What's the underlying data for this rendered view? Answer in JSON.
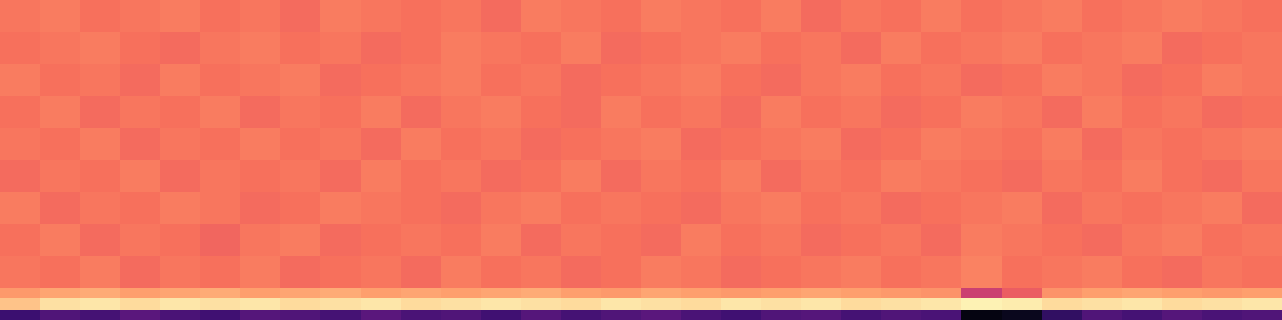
{
  "chart_data": {
    "type": "heatmap",
    "x": [
      0,
      1,
      2,
      3,
      4,
      5,
      6,
      7,
      8,
      9,
      10,
      11,
      12,
      13,
      14,
      15,
      16,
      17,
      18,
      19,
      20,
      21,
      22,
      23,
      24,
      25,
      26,
      27,
      28,
      29,
      30,
      31
    ],
    "y": [
      0,
      1,
      2,
      3,
      6,
      9,
      12,
      15,
      18,
      21,
      24,
      27,
      30
    ],
    "xlim": [
      -0.5,
      31.5
    ],
    "ylim": [
      0,
      30
    ],
    "zlim": [
      -80,
      0
    ],
    "tick_labels": false,
    "values": [
      [
        -64,
        -60,
        -62,
        -58,
        -61,
        -63,
        -59,
        -60,
        -62,
        -58,
        -61,
        -60,
        -63,
        -59,
        -62,
        -60,
        -58,
        -61,
        -63,
        -60,
        -59,
        -62,
        -60,
        -61,
        -78,
        -76,
        -66,
        -60,
        -62,
        -59,
        -61,
        -60
      ],
      [
        -10,
        -5,
        -4,
        -6,
        -4,
        -5,
        -4,
        -6,
        -5,
        -4,
        -6,
        -5,
        -4,
        -5,
        -6,
        -4,
        -5,
        -6,
        -4,
        -5,
        -4,
        -6,
        -5,
        -4,
        -2,
        -3,
        -6,
        -5,
        -4,
        -6,
        -5,
        -4
      ],
      [
        -17,
        -15,
        -14,
        -16,
        -15,
        -14,
        -16,
        -15,
        -14,
        -16,
        -15,
        -16,
        -15,
        -14,
        -16,
        -17,
        -15,
        -16,
        -17,
        -16,
        -15,
        -16,
        -17,
        -18,
        -36,
        -28,
        -18,
        -16,
        -15,
        -16,
        -17,
        -16
      ],
      [
        -23,
        -24,
        -22,
        -25,
        -23,
        -24,
        -22,
        -25,
        -24,
        -23,
        -25,
        -22,
        -24,
        -23,
        -25,
        -24,
        -22,
        -23,
        -25,
        -24,
        -23,
        -22,
        -24,
        -23,
        -21,
        -24,
        -23,
        -22,
        -24,
        -25,
        -23,
        -24
      ],
      [
        -24,
        -22,
        -25,
        -23,
        -24,
        -26,
        -23,
        -22,
        -25,
        -24,
        -23,
        -24,
        -22,
        -25,
        -23,
        -24,
        -25,
        -22,
        -24,
        -23,
        -25,
        -24,
        -23,
        -25,
        -22,
        -23,
        -24,
        -25,
        -23,
        -22,
        -24,
        -23
      ],
      [
        -22,
        -25,
        -23,
        -24,
        -22,
        -23,
        -25,
        -24,
        -22,
        -23,
        -24,
        -25,
        -23,
        -22,
        -24,
        -23,
        -24,
        -25,
        -23,
        -22,
        -24,
        -23,
        -25,
        -24,
        -23,
        -22,
        -25,
        -23,
        -24,
        -23,
        -22,
        -25
      ],
      [
        -25,
        -23,
        -24,
        -22,
        -25,
        -23,
        -24,
        -23,
        -25,
        -22,
        -24,
        -23,
        -25,
        -24,
        -22,
        -25,
        -23,
        -24,
        -22,
        -25,
        -23,
        -24,
        -22,
        -23,
        -24,
        -25,
        -23,
        -24,
        -22,
        -24,
        -25,
        -23
      ],
      [
        -23,
        -24,
        -22,
        -25,
        -23,
        -24,
        -22,
        -24,
        -23,
        -25,
        -22,
        -24,
        -23,
        -25,
        -24,
        -23,
        -22,
        -25,
        -24,
        -23,
        -22,
        -25,
        -24,
        -22,
        -23,
        -24,
        -22,
        -25,
        -23,
        -24,
        -23,
        -22
      ],
      [
        -24,
        -22,
        -25,
        -23,
        -24,
        -22,
        -25,
        -23,
        -24,
        -22,
        -25,
        -23,
        -22,
        -24,
        -25,
        -22,
        -24,
        -23,
        -25,
        -22,
        -24,
        -23,
        -25,
        -24,
        -22,
        -23,
        -25,
        -22,
        -24,
        -23,
        -25,
        -24
      ],
      [
        -22,
        -24,
        -23,
        -25,
        -22,
        -24,
        -23,
        -22,
        -25,
        -24,
        -23,
        -22,
        -24,
        -23,
        -25,
        -24,
        -23,
        -22,
        -24,
        -25,
        -23,
        -22,
        -24,
        -23,
        -25,
        -24,
        -22,
        -23,
        -25,
        -24,
        -22,
        -23
      ],
      [
        -24,
        -23,
        -22,
        -24,
        -25,
        -23,
        -22,
        -24,
        -23,
        -25,
        -24,
        -22,
        -23,
        -24,
        -22,
        -25,
        -24,
        -23,
        -22,
        -24,
        -23,
        -25,
        -22,
        -24,
        -23,
        -22,
        -24,
        -23,
        -22,
        -25,
        -24,
        -23
      ],
      [
        -23,
        -22,
        -24,
        -23,
        -22,
        -24,
        -23,
        -25,
        -22,
        -23,
        -24,
        -23,
        -25,
        -22,
        -23,
        -24,
        -22,
        -23,
        -24,
        -22,
        -25,
        -23,
        -24,
        -22,
        -24,
        -23,
        -22,
        -24,
        -23,
        -22,
        -23,
        -24
      ]
    ]
  }
}
